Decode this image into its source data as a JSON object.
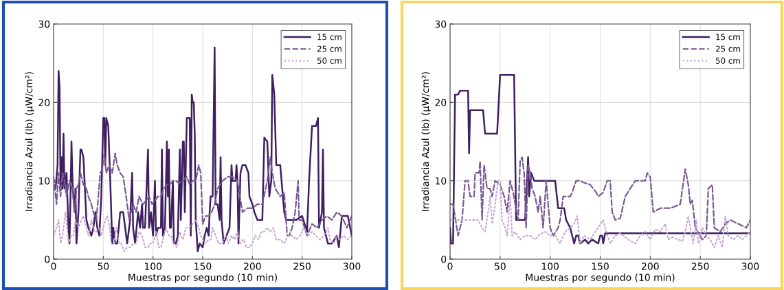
{
  "chart_data": [
    {
      "type": "line",
      "xlabel": "Muestras por segundo (10 min)",
      "ylabel": "Irradiancia Azul (Ib) (μW/cm²)",
      "xlim": [
        0,
        300
      ],
      "ylim": [
        0,
        30
      ],
      "xticks": [
        0,
        50,
        100,
        150,
        200,
        250,
        300
      ],
      "yticks": [
        0,
        10,
        20,
        30
      ],
      "grid": true,
      "legend": "top right",
      "series": [
        {
          "name": "15 cm",
          "color": "#3f1f5f",
          "line_style": "solid",
          "x": [
            0,
            2,
            4,
            5,
            6,
            7,
            8,
            9,
            10,
            11,
            13,
            15,
            16,
            17,
            18,
            19,
            21,
            22,
            23,
            25,
            27,
            28,
            30,
            33,
            35,
            38,
            40,
            42,
            44,
            46,
            48,
            50,
            51,
            52,
            53,
            55,
            57,
            59,
            60,
            62,
            64,
            67,
            70,
            72,
            74,
            77,
            79,
            80,
            82,
            85,
            87,
            89,
            90,
            92,
            95,
            96,
            98,
            100,
            102,
            103,
            105,
            108,
            109,
            110,
            112,
            114,
            115,
            116,
            117,
            118,
            120,
            121,
            123,
            125,
            127,
            128,
            130,
            131,
            132,
            134,
            137,
            138,
            139,
            140,
            141,
            142,
            143,
            145,
            147,
            150,
            152,
            154,
            156,
            157,
            158,
            160,
            162,
            163,
            165,
            167,
            168,
            169,
            171,
            174,
            177,
            179,
            180,
            183,
            184,
            185,
            186,
            188,
            190,
            193,
            196,
            197,
            200,
            202,
            205,
            210,
            212,
            215,
            217,
            219,
            220,
            222,
            224,
            228,
            232,
            234,
            244,
            250,
            255,
            257,
            260,
            264,
            266,
            267,
            270,
            271,
            272,
            276,
            280,
            285,
            287,
            290,
            296,
            300
          ],
          "values": [
            9,
            9,
            12,
            24,
            22,
            9,
            13,
            9,
            16,
            9,
            11,
            4,
            2,
            8,
            15,
            10,
            6,
            9,
            2,
            6,
            14,
            14,
            13,
            5,
            4,
            3,
            4,
            6,
            4,
            3,
            8,
            18,
            18,
            12,
            18,
            17,
            10,
            2,
            4,
            2,
            2,
            6,
            6,
            4,
            2,
            5,
            11,
            4,
            2,
            6,
            4,
            7,
            4,
            4,
            14,
            4,
            6,
            3,
            10,
            3,
            4,
            4,
            14,
            3,
            4,
            15,
            8,
            14,
            4,
            4,
            10,
            2,
            2,
            3,
            14,
            5,
            15,
            15,
            6,
            18,
            18,
            3,
            21,
            20,
            20,
            16,
            5,
            1,
            2,
            1.5,
            3,
            4,
            3,
            6,
            8,
            8,
            27,
            7,
            7,
            5,
            13,
            5,
            2,
            3,
            4,
            12,
            10,
            10,
            12,
            10,
            2,
            11,
            12,
            12,
            11,
            8,
            7,
            6,
            5,
            5,
            15.5,
            15,
            8,
            10,
            23.5,
            21,
            12,
            12,
            6,
            5,
            5,
            5.5,
            3.5,
            10,
            17,
            17,
            18,
            4,
            6,
            14,
            4,
            2,
            2,
            3,
            1.5,
            5.5,
            5.5,
            3
          ]
        },
        {
          "name": "25 cm",
          "color": "#7a5a94",
          "line_style": "dashed",
          "x": [
            0,
            3,
            5,
            7,
            9,
            11,
            13,
            16,
            19,
            21,
            23,
            25,
            27,
            30,
            33,
            35,
            38,
            40,
            43,
            45,
            47,
            49,
            51,
            53,
            56,
            59,
            62,
            64,
            67,
            70,
            73,
            76,
            80,
            83,
            86,
            90,
            93,
            96,
            99,
            102,
            105,
            108,
            111,
            114,
            117,
            120,
            123,
            126,
            130,
            134,
            137,
            140,
            143,
            146,
            148,
            150,
            153,
            156,
            159,
            162,
            165,
            170,
            175,
            180,
            185,
            190,
            195,
            200,
            205,
            210,
            215,
            218,
            220,
            223,
            228,
            232,
            235,
            237,
            240,
            243,
            246,
            247,
            250,
            255,
            260,
            265,
            270,
            275,
            280,
            285,
            290,
            295,
            300
          ],
          "values": [
            10.5,
            7,
            11,
            8,
            11,
            10,
            8,
            10,
            9,
            6,
            9,
            9.5,
            11,
            9.5,
            9,
            8,
            7,
            6,
            5,
            8,
            11,
            11.5,
            13.5,
            11,
            12,
            11,
            13.5,
            12,
            11,
            10.5,
            8,
            5,
            7,
            6,
            8,
            7,
            7.5,
            8,
            7,
            7.5,
            8,
            8,
            9,
            9.5,
            9.5,
            10,
            10,
            9.7,
            10,
            10.5,
            9.5,
            10,
            10,
            12,
            11,
            4.5,
            5.5,
            5.5,
            6,
            7,
            9,
            10,
            10.5,
            10.5,
            10,
            6,
            6.5,
            6.5,
            7,
            7,
            10,
            13,
            11,
            9,
            8,
            8.5,
            3,
            3,
            4,
            6,
            10,
            5,
            5,
            3,
            4.5,
            4,
            5,
            5.5,
            5,
            6,
            5.5,
            4,
            5.5
          ]
        },
        {
          "name": "50 cm",
          "color": "#c7a6d6",
          "line_style": "dotted",
          "x": [
            0,
            3,
            5,
            7,
            9,
            12,
            15,
            18,
            20,
            22,
            25,
            28,
            30,
            33,
            35,
            38,
            41,
            43,
            46,
            48,
            52,
            54,
            56,
            58,
            61,
            63,
            66,
            68,
            71,
            74,
            77,
            80,
            83,
            86,
            89,
            92,
            95,
            97,
            100,
            103,
            106,
            108,
            111,
            113,
            116,
            118,
            121,
            124,
            127,
            130,
            133,
            136,
            140,
            143,
            146,
            148,
            150,
            153,
            156,
            158,
            160,
            163,
            166,
            170,
            173,
            176,
            179,
            182,
            185,
            188,
            191,
            194,
            197,
            200,
            203,
            206,
            209,
            212,
            215,
            218,
            221,
            224,
            228,
            232,
            236,
            240,
            244,
            248,
            252,
            256,
            260,
            264,
            268,
            272,
            276,
            278,
            282,
            285,
            288,
            292,
            296,
            300
          ],
          "values": [
            3,
            4,
            5,
            2,
            3,
            6,
            2,
            3,
            3,
            5,
            4,
            5,
            5.5,
            4,
            3,
            5,
            3.5,
            3.5,
            4,
            3,
            5,
            5.5,
            4.5,
            2,
            2,
            4,
            2,
            2,
            1,
            1.5,
            1.5,
            2,
            2,
            3.5,
            3,
            1.5,
            1.5,
            2,
            2,
            3.5,
            1.5,
            1.5,
            3,
            4,
            3,
            3,
            2,
            1.5,
            3.5,
            2.5,
            4,
            4,
            4.5,
            5,
            4,
            3,
            2.5,
            2,
            2.5,
            2.5,
            4,
            3,
            2,
            2,
            3,
            2,
            3,
            2.5,
            3.5,
            2,
            2.5,
            1.5,
            1.5,
            2,
            3,
            2.5,
            3.5,
            3.5,
            4,
            3.5,
            4,
            2.5,
            2.5,
            2,
            3,
            3,
            2.5,
            3,
            4,
            3,
            3.5,
            3,
            2.5,
            3,
            4,
            2.5,
            2,
            3,
            2.5,
            3,
            2.5,
            3
          ]
        }
      ]
    },
    {
      "type": "line",
      "xlabel": "Muestras por segundo (10 min)",
      "ylabel": "Irradiancia Azul (Ib) (μW/cm²)",
      "xlim": [
        0,
        300
      ],
      "ylim": [
        0,
        30
      ],
      "xticks": [
        0,
        50,
        100,
        150,
        200,
        250,
        300
      ],
      "yticks": [
        0,
        10,
        20,
        30
      ],
      "grid": true,
      "legend": "top right",
      "series": [
        {
          "name": "15 cm",
          "color": "#3f1f5f",
          "line_style": "solid",
          "x": [
            0,
            1,
            3,
            5,
            8,
            10,
            18,
            19,
            20,
            22,
            33,
            35,
            47,
            50,
            64,
            66,
            75,
            78,
            79,
            81,
            84,
            105,
            108,
            114,
            116,
            120,
            124,
            126,
            128,
            130,
            135,
            138,
            142,
            148,
            150,
            152,
            153,
            155,
            300
          ],
          "values": [
            4,
            2,
            2,
            21,
            21,
            21.5,
            21.5,
            13.5,
            19,
            19,
            19,
            16,
            16,
            23.5,
            23.5,
            5,
            5,
            13,
            8,
            11,
            10,
            10,
            6.5,
            6.5,
            5,
            4,
            2,
            3,
            3,
            2,
            2.5,
            2,
            2.5,
            2,
            3,
            3,
            2,
            3.3,
            3.3
          ]
        },
        {
          "name": "25 cm",
          "color": "#7a5a94",
          "line_style": "dashed",
          "x": [
            0,
            3,
            8,
            12,
            15,
            18,
            20,
            24,
            25,
            29,
            30,
            32,
            34,
            37,
            40,
            42,
            45,
            50,
            54,
            57,
            60,
            63,
            68,
            70,
            72,
            74,
            76,
            78,
            80,
            82,
            85,
            88,
            90,
            93,
            96,
            100,
            103,
            108,
            110,
            113,
            120,
            122,
            126,
            130,
            133,
            140,
            146,
            148,
            153,
            157,
            160,
            162,
            165,
            170,
            175,
            180,
            185,
            195,
            197,
            200,
            203,
            210,
            220,
            230,
            235,
            238,
            240,
            242,
            245,
            250,
            252,
            256,
            258,
            262,
            264,
            270,
            275,
            280,
            288,
            296,
            300
          ],
          "values": [
            7,
            7,
            3,
            5,
            10,
            10,
            8,
            8,
            11,
            11,
            12.5,
            5,
            12,
            9,
            9,
            8,
            10,
            9.5,
            8,
            6,
            10,
            8.5,
            5,
            12.5,
            13,
            11,
            4,
            12,
            11,
            9,
            8,
            6,
            8,
            4,
            10,
            4,
            3,
            4,
            5,
            8,
            8,
            8.5,
            10,
            10,
            9.8,
            9.5,
            8.5,
            8,
            8.5,
            10,
            10,
            6,
            5,
            5.2,
            8,
            9,
            10,
            10,
            11,
            10.5,
            6,
            6.5,
            6.5,
            7,
            11.5,
            9.5,
            7,
            7.5,
            4,
            3,
            2.5,
            3,
            9,
            9.5,
            4,
            3.5,
            4.5,
            5,
            4.5,
            4,
            5
          ]
        },
        {
          "name": "50 cm",
          "color": "#c7a6d6",
          "line_style": "dotted",
          "x": [
            0,
            20,
            28,
            32,
            35,
            38,
            40,
            42,
            45,
            48,
            50,
            52,
            55,
            57,
            60,
            62,
            65,
            70,
            75,
            80,
            85,
            90,
            95,
            100,
            105,
            110,
            115,
            120,
            124,
            127,
            130,
            134,
            140,
            148,
            153,
            156,
            160,
            165,
            170,
            178,
            185,
            190,
            195,
            200,
            205,
            210,
            215,
            218,
            222,
            228,
            232,
            235,
            238,
            240,
            243,
            246,
            248,
            252,
            256,
            260,
            264,
            268,
            272,
            275,
            278,
            283,
            288,
            292,
            296,
            300
          ],
          "values": [
            5,
            5,
            5,
            4,
            3.5,
            6,
            8,
            4.5,
            7,
            10,
            10,
            5,
            4,
            3,
            8,
            3,
            3.5,
            2.5,
            3,
            3,
            2.5,
            3.2,
            3.5,
            3,
            3,
            2,
            3.5,
            4,
            4.5,
            5.5,
            2,
            3,
            2.5,
            4,
            5,
            3.5,
            2,
            3,
            3.3,
            2.5,
            2,
            3,
            3.5,
            2.5,
            3.8,
            3.5,
            4.5,
            2.5,
            2.8,
            2.5,
            2.3,
            3.5,
            5.5,
            4,
            2,
            5,
            2,
            4,
            3,
            2.5,
            1.5,
            3,
            1.5,
            5.5,
            3,
            2.5,
            3,
            2.5,
            3,
            3.5
          ]
        }
      ]
    }
  ]
}
